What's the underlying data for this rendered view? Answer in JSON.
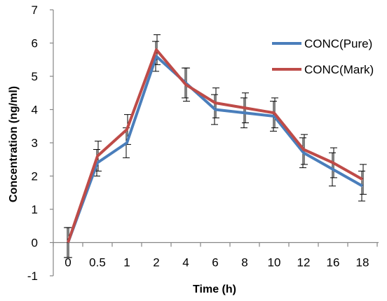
{
  "chart_data": {
    "type": "line",
    "title": "",
    "xlabel": "Time (h)",
    "ylabel": "Concentration (ng/ml)",
    "categories": [
      "0",
      "0.5",
      "1",
      "2",
      "4",
      "6",
      "8",
      "10",
      "12",
      "16",
      "18"
    ],
    "ylim": [
      -1,
      7
    ],
    "y_ticks": [
      -1,
      0,
      1,
      2,
      3,
      4,
      5,
      6,
      7
    ],
    "grid": false,
    "legend_position": "right",
    "series": [
      {
        "name": "CONC(Pure)",
        "color": "#4a7ebb",
        "values": [
          0,
          2.4,
          3.0,
          5.6,
          4.8,
          4.0,
          3.9,
          3.8,
          2.7,
          2.2,
          1.7
        ],
        "error": [
          0.45,
          0.4,
          0.45,
          0.45,
          0.45,
          0.45,
          0.45,
          0.45,
          0.45,
          0.5,
          0.45
        ]
      },
      {
        "name": "CONC(Mark)",
        "color": "#be4b48",
        "values": [
          0,
          2.6,
          3.4,
          5.8,
          4.75,
          4.2,
          4.05,
          3.9,
          2.8,
          2.4,
          1.9
        ],
        "error": [
          0.45,
          0.45,
          0.45,
          0.45,
          0.5,
          0.45,
          0.45,
          0.45,
          0.45,
          0.45,
          0.45
        ]
      }
    ]
  }
}
